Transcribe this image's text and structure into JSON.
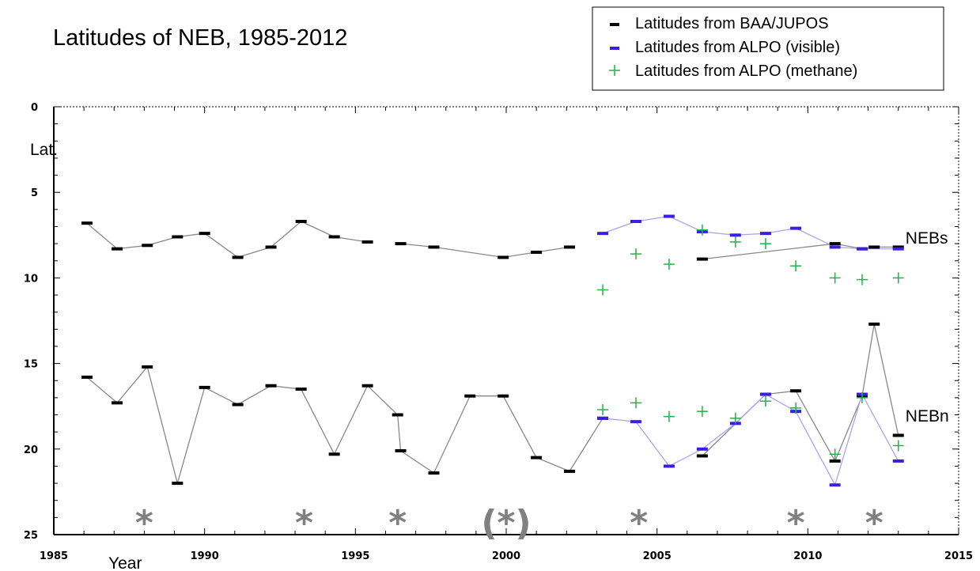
{
  "chart_data": {
    "type": "scatter",
    "title": "Latitudes of NEB, 1985-2012",
    "xlabel": "Year",
    "ylabel": "Lat.",
    "xlim": [
      1985,
      2015
    ],
    "ylim": [
      0,
      25
    ],
    "y_inverted": true,
    "x_ticks": [
      "1985",
      "1990",
      "1995",
      "2000",
      "2005",
      "2010",
      "2015"
    ],
    "y_ticks": [
      "0",
      "5",
      "10",
      "15",
      "20",
      "25"
    ],
    "grid": false,
    "legend_position": "top-right",
    "legend": [
      {
        "label": "Latitudes from BAA/JUPOS",
        "marker": "dash",
        "color": "#000000"
      },
      {
        "label": "Latitudes from ALPO (visible)",
        "marker": "dash",
        "color": "#3a1fe0"
      },
      {
        "label": "Latitudes from ALPO (methane)",
        "marker": "plus",
        "color": "#22b34a"
      }
    ],
    "annotations": [
      {
        "text": "NEBs",
        "x": 2013.5,
        "y": 7.8
      },
      {
        "text": "NEBn",
        "x": 2013.5,
        "y": 18.2
      }
    ],
    "markers": [
      {
        "text": "*",
        "x": 1988.0
      },
      {
        "text": "*",
        "x": 1993.3
      },
      {
        "text": "*",
        "x": 1996.4
      },
      {
        "text": "(*)",
        "x": 2000.0
      },
      {
        "text": "*",
        "x": 2004.4
      },
      {
        "text": "*",
        "x": 2009.6
      },
      {
        "text": "*",
        "x": 2012.2
      }
    ],
    "series": [
      {
        "name": "Latitudes from BAA/JUPOS",
        "color": "#000000",
        "line_color": "#888888",
        "groups": [
          [
            [
              1986.1,
              6.8
            ],
            [
              1987.1,
              8.3
            ],
            [
              1988.1,
              8.1
            ],
            [
              1989.1,
              7.6
            ],
            [
              1990.0,
              7.4
            ],
            [
              1991.1,
              8.8
            ],
            [
              1992.2,
              8.2
            ],
            [
              1993.2,
              6.7
            ],
            [
              1994.3,
              7.6
            ],
            [
              1995.4,
              7.9
            ]
          ],
          [
            [
              1996.5,
              8.0
            ],
            [
              1997.6,
              8.2
            ],
            [
              1999.9,
              8.8
            ],
            [
              2001.0,
              8.5
            ],
            [
              2002.1,
              8.2
            ]
          ],
          [
            [
              2006.5,
              8.9
            ],
            [
              2010.9,
              8.0
            ],
            [
              2011.8,
              8.3
            ],
            [
              2012.2,
              8.2
            ],
            [
              2013.0,
              8.2
            ]
          ],
          [
            [
              1986.1,
              15.8
            ],
            [
              1987.1,
              17.3
            ],
            [
              1988.1,
              15.2
            ],
            [
              1989.1,
              22.0
            ],
            [
              1990.0,
              16.4
            ],
            [
              1991.1,
              17.4
            ],
            [
              1992.2,
              16.3
            ],
            [
              1993.2,
              16.5
            ],
            [
              1994.3,
              20.3
            ],
            [
              1995.4,
              16.3
            ],
            [
              1996.4,
              18.0
            ],
            [
              1996.5,
              20.1
            ],
            [
              1997.6,
              21.4
            ],
            [
              1998.8,
              16.9
            ],
            [
              1999.9,
              16.9
            ],
            [
              2001.0,
              20.5
            ],
            [
              2002.1,
              21.3
            ],
            [
              2003.2,
              18.2
            ]
          ],
          [
            [
              2006.5,
              20.4
            ],
            [
              2008.6,
              16.8
            ],
            [
              2009.6,
              16.6
            ],
            [
              2010.9,
              20.7
            ],
            [
              2011.8,
              16.9
            ],
            [
              2012.2,
              12.7
            ],
            [
              2013.0,
              19.2
            ]
          ]
        ]
      },
      {
        "name": "Latitudes from ALPO (visible)",
        "color": "#3a1fe0",
        "line_color": "#aaa5e8",
        "groups": [
          [
            [
              2003.2,
              7.4
            ],
            [
              2004.3,
              6.7
            ],
            [
              2005.4,
              6.4
            ],
            [
              2006.5,
              7.3
            ],
            [
              2007.6,
              7.5
            ],
            [
              2008.6,
              7.4
            ],
            [
              2009.6,
              7.1
            ],
            [
              2010.9,
              8.2
            ],
            [
              2011.8,
              8.3
            ],
            [
              2013.0,
              8.3
            ]
          ],
          [
            [
              2003.2,
              18.2
            ],
            [
              2004.3,
              18.4
            ],
            [
              2005.4,
              21.0
            ],
            [
              2006.5,
              20.0
            ],
            [
              2007.6,
              18.5
            ],
            [
              2008.6,
              16.8
            ],
            [
              2009.6,
              17.8
            ],
            [
              2010.9,
              22.1
            ],
            [
              2011.8,
              16.8
            ],
            [
              2013.0,
              20.7
            ]
          ]
        ]
      },
      {
        "name": "Latitudes from ALPO (methane)",
        "color": "#22b34a",
        "points": [
          [
            2003.2,
            10.7
          ],
          [
            2004.3,
            8.6
          ],
          [
            2005.4,
            9.2
          ],
          [
            2006.5,
            7.2
          ],
          [
            2007.6,
            7.9
          ],
          [
            2008.6,
            8.0
          ],
          [
            2009.6,
            9.3
          ],
          [
            2010.9,
            10.0
          ],
          [
            2011.8,
            10.1
          ],
          [
            2013.0,
            10.0
          ],
          [
            2003.2,
            17.7
          ],
          [
            2004.3,
            17.3
          ],
          [
            2005.4,
            18.1
          ],
          [
            2006.5,
            17.8
          ],
          [
            2007.6,
            18.2
          ],
          [
            2008.6,
            17.2
          ],
          [
            2009.6,
            17.6
          ],
          [
            2010.9,
            20.3
          ],
          [
            2011.8,
            17.0
          ],
          [
            2013.0,
            19.8
          ]
        ]
      }
    ]
  }
}
